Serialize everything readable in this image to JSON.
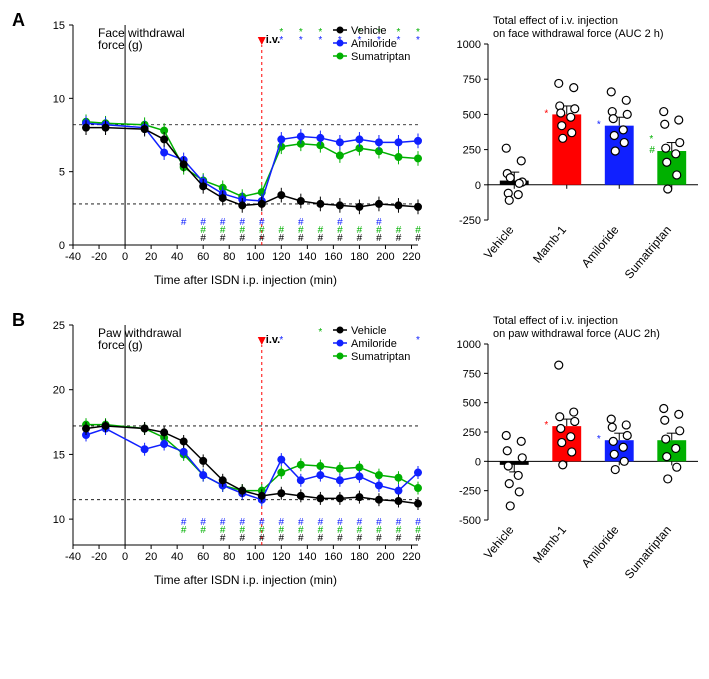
{
  "colors": {
    "vehicle": "#000000",
    "amiloride": "#1020ff",
    "sumatriptan": "#00b000",
    "mamb1": "#ff0000",
    "scatter": "#000000",
    "scatter_fill": "#ffffff",
    "iv": "#ff0000"
  },
  "legend": {
    "vehicle": "Vehicle",
    "amiloride": "Amiloride",
    "sumatriptan": "Sumatriptan"
  },
  "panelA": {
    "label": "A",
    "line": {
      "title": "Face withdrawal\nforce (g)",
      "xlabel": "Time after ISDN i.p. injection (min)",
      "xlim": [
        -40,
        225
      ],
      "ylim": [
        0,
        15
      ],
      "xticks": [
        -40,
        -20,
        0,
        20,
        40,
        60,
        80,
        100,
        120,
        140,
        160,
        180,
        200,
        220
      ],
      "yticks": [
        0,
        5,
        10,
        15
      ],
      "iv_x": 105,
      "iv_label": "i.v.",
      "ref_y_high": 8.2,
      "ref_y_low": 2.8,
      "series": {
        "vehicle": {
          "x": [
            -30,
            -15,
            15,
            30,
            45,
            60,
            75,
            90,
            105,
            120,
            135,
            150,
            165,
            180,
            195,
            210,
            225
          ],
          "y": [
            8.0,
            8.0,
            7.9,
            7.2,
            5.5,
            4.0,
            3.2,
            2.7,
            2.8,
            3.4,
            3.0,
            2.8,
            2.7,
            2.6,
            2.8,
            2.7,
            2.6
          ]
        },
        "amiloride": {
          "x": [
            -30,
            -15,
            15,
            30,
            45,
            60,
            75,
            90,
            105,
            120,
            135,
            150,
            165,
            180,
            195,
            210,
            225
          ],
          "y": [
            8.3,
            8.2,
            8.0,
            6.3,
            5.8,
            4.3,
            3.5,
            3.1,
            3.0,
            7.2,
            7.4,
            7.3,
            7.0,
            7.2,
            7.0,
            7.0,
            7.1
          ]
        },
        "sumatriptan": {
          "x": [
            -30,
            -15,
            15,
            30,
            45,
            60,
            75,
            90,
            105,
            120,
            135,
            150,
            165,
            180,
            195,
            210,
            225
          ],
          "y": [
            8.4,
            8.3,
            8.2,
            7.8,
            5.3,
            4.4,
            3.9,
            3.3,
            3.6,
            6.7,
            6.9,
            6.8,
            6.1,
            6.6,
            6.4,
            6.0,
            5.9
          ]
        }
      },
      "sig_top": {
        "amiloride": {
          "x": [
            120,
            135,
            150,
            165,
            180,
            195,
            210,
            225
          ]
        },
        "sumatriptan": {
          "x": [
            120,
            135,
            150,
            165,
            180,
            195,
            210,
            225
          ]
        }
      },
      "sig_bottom": {
        "vehicle": {
          "x": [
            60,
            75,
            90,
            105,
            120,
            135,
            150,
            165,
            180,
            195,
            210,
            225
          ]
        },
        "amiloride": {
          "x": [
            45,
            60,
            75,
            90,
            105,
            135,
            165,
            195
          ]
        },
        "sumatriptan": {
          "x": [
            60,
            75,
            90,
            105,
            120,
            135,
            150,
            165,
            180,
            195,
            210,
            225
          ]
        }
      }
    },
    "bar": {
      "title": "Total effect of i.v. injection\non face withdrawal force (AUC 2 h)",
      "ylim": [
        -250,
        1000
      ],
      "yticks": [
        -250,
        0,
        250,
        500,
        750,
        1000
      ],
      "categories": [
        "Vehicle",
        "Mamb-1",
        "Amiloride",
        "Sumatriptan"
      ],
      "bars": [
        {
          "label": "Vehicle",
          "value": 30,
          "color": "#000000",
          "sig": "",
          "sig_color": "",
          "points": [
            260,
            170,
            80,
            20,
            -60,
            -70,
            -110,
            10,
            50
          ]
        },
        {
          "label": "Mamb-1",
          "value": 500,
          "color": "#ff0000",
          "sig": "*",
          "sig_color": "#ff0000",
          "points": [
            720,
            690,
            560,
            540,
            510,
            480,
            420,
            370,
            330
          ]
        },
        {
          "label": "Amiloride",
          "value": 420,
          "color": "#1020ff",
          "sig": "*",
          "sig_color": "#1020ff",
          "points": [
            660,
            600,
            520,
            500,
            470,
            390,
            350,
            300,
            240
          ]
        },
        {
          "label": "Sumatriptan",
          "value": 240,
          "color": "#00b000",
          "sig": "#*",
          "sig_color": "#00b000",
          "points": [
            520,
            460,
            430,
            300,
            260,
            220,
            160,
            70,
            -30
          ]
        }
      ]
    }
  },
  "panelB": {
    "label": "B",
    "line": {
      "title": "Paw withdrawal\nforce (g)",
      "xlabel": "Time after ISDN i.p. injection (min)",
      "xlim": [
        -40,
        225
      ],
      "ylim": [
        8,
        25
      ],
      "xticks": [
        -40,
        -20,
        0,
        20,
        40,
        60,
        80,
        100,
        120,
        140,
        160,
        180,
        200,
        220
      ],
      "yticks": [
        10,
        15,
        20,
        25
      ],
      "iv_x": 105,
      "iv_label": "i.v.",
      "ref_y_high": 17.2,
      "ref_y_low": 11.5,
      "series": {
        "vehicle": {
          "x": [
            -30,
            -15,
            15,
            30,
            45,
            60,
            75,
            90,
            105,
            120,
            135,
            150,
            165,
            180,
            195,
            210,
            225
          ],
          "y": [
            17.0,
            17.2,
            17.0,
            16.7,
            16.0,
            14.5,
            13.0,
            12.2,
            11.8,
            12.0,
            11.8,
            11.6,
            11.6,
            11.7,
            11.5,
            11.4,
            11.2
          ]
        },
        "amiloride": {
          "x": [
            -30,
            -15,
            15,
            30,
            45,
            60,
            75,
            90,
            105,
            120,
            135,
            150,
            165,
            180,
            195,
            210,
            225
          ],
          "y": [
            16.5,
            17.0,
            15.4,
            15.8,
            15.2,
            13.4,
            12.6,
            12.0,
            11.5,
            14.6,
            13.0,
            13.4,
            13.0,
            13.3,
            12.6,
            12.2,
            13.6
          ]
        },
        "sumatriptan": {
          "x": [
            -30,
            -15,
            15,
            30,
            45,
            60,
            75,
            90,
            105,
            120,
            135,
            150,
            165,
            180,
            195,
            210,
            225
          ],
          "y": [
            17.3,
            17.3,
            17.0,
            16.3,
            15.0,
            13.4,
            12.6,
            12.2,
            12.2,
            13.6,
            14.2,
            14.1,
            13.9,
            14.0,
            13.4,
            13.2,
            12.4
          ]
        }
      },
      "sig_top": {
        "amiloride": {
          "x": [
            120,
            225
          ]
        },
        "sumatriptan": {
          "x": [
            150
          ]
        }
      },
      "sig_bottom": {
        "vehicle": {
          "x": [
            75,
            90,
            105,
            120,
            135,
            150,
            165,
            180,
            195,
            210,
            225
          ]
        },
        "amiloride": {
          "x": [
            45,
            60,
            75,
            90,
            105,
            120,
            135,
            150,
            165,
            180,
            195,
            210,
            225
          ]
        },
        "sumatriptan": {
          "x": [
            45,
            60,
            75,
            90,
            105,
            120,
            135,
            150,
            165,
            180,
            195,
            210,
            225
          ]
        }
      }
    },
    "bar": {
      "title": "Total effect of i.v. injection\non paw withdrawal force (AUC 2h)",
      "ylim": [
        -500,
        1000
      ],
      "yticks": [
        -500,
        -250,
        0,
        250,
        500,
        750,
        1000
      ],
      "categories": [
        "Vehicle",
        "Mamb-1",
        "Amiloride",
        "Sumatriptan"
      ],
      "bars": [
        {
          "label": "Vehicle",
          "value": -30,
          "color": "#000000",
          "sig": "",
          "sig_color": "",
          "points": [
            220,
            170,
            90,
            30,
            -40,
            -120,
            -190,
            -260,
            -380
          ]
        },
        {
          "label": "Mamb-1",
          "value": 300,
          "color": "#ff0000",
          "sig": "*",
          "sig_color": "#ff0000",
          "points": [
            820,
            420,
            380,
            340,
            280,
            210,
            160,
            80,
            -30
          ]
        },
        {
          "label": "Amiloride",
          "value": 180,
          "color": "#1020ff",
          "sig": "*",
          "sig_color": "#1020ff",
          "points": [
            360,
            310,
            290,
            220,
            170,
            120,
            60,
            0,
            -70
          ]
        },
        {
          "label": "Sumatriptan",
          "value": 180,
          "color": "#00b000",
          "sig": "",
          "sig_color": "",
          "points": [
            450,
            400,
            350,
            260,
            190,
            110,
            40,
            -50,
            -150
          ]
        }
      ]
    }
  }
}
